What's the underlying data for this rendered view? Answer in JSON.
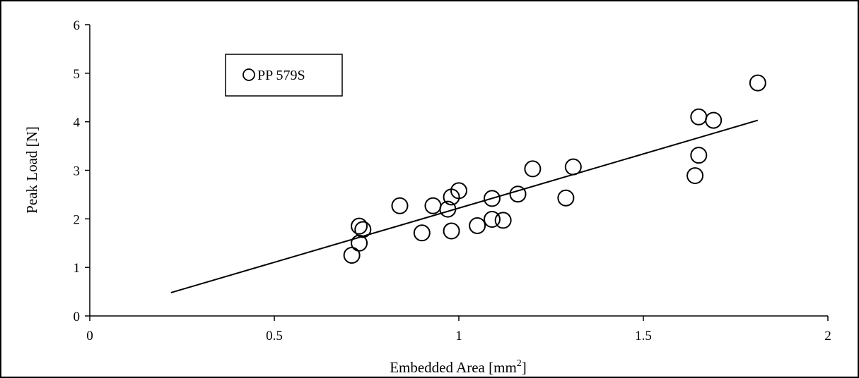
{
  "chart_data": {
    "type": "scatter",
    "title": "",
    "xlabel": "Embedded Area [mm",
    "xlabel_sup": "2",
    "xlabel_suffix": "]",
    "ylabel": "Peak Load [N]",
    "xlim": [
      0,
      2
    ],
    "ylim": [
      0,
      6
    ],
    "x_ticks": [
      0,
      0.5,
      1,
      1.5,
      2
    ],
    "x_tick_labels": [
      "0",
      "0.5",
      "1",
      "1.5",
      "2"
    ],
    "y_ticks": [
      0,
      1,
      2,
      3,
      4,
      5,
      6
    ],
    "y_tick_labels": [
      "0",
      "1",
      "2",
      "3",
      "4",
      "5",
      "6"
    ],
    "grid": false,
    "legend_position": "top-left",
    "series": [
      {
        "name": "PP 579S",
        "marker": "open-circle",
        "points": [
          {
            "x": 0.71,
            "y": 1.25
          },
          {
            "x": 0.73,
            "y": 1.5
          },
          {
            "x": 0.73,
            "y": 1.85
          },
          {
            "x": 0.74,
            "y": 1.78
          },
          {
            "x": 0.84,
            "y": 2.27
          },
          {
            "x": 0.9,
            "y": 1.71
          },
          {
            "x": 0.93,
            "y": 2.27
          },
          {
            "x": 0.97,
            "y": 2.2
          },
          {
            "x": 0.98,
            "y": 2.45
          },
          {
            "x": 0.98,
            "y": 1.75
          },
          {
            "x": 1.0,
            "y": 2.58
          },
          {
            "x": 1.05,
            "y": 1.86
          },
          {
            "x": 1.09,
            "y": 2.42
          },
          {
            "x": 1.09,
            "y": 1.99
          },
          {
            "x": 1.12,
            "y": 1.97
          },
          {
            "x": 1.16,
            "y": 2.51
          },
          {
            "x": 1.2,
            "y": 3.03
          },
          {
            "x": 1.29,
            "y": 2.43
          },
          {
            "x": 1.31,
            "y": 3.07
          },
          {
            "x": 1.64,
            "y": 2.89
          },
          {
            "x": 1.65,
            "y": 4.1
          },
          {
            "x": 1.65,
            "y": 3.31
          },
          {
            "x": 1.69,
            "y": 4.03
          },
          {
            "x": 1.81,
            "y": 4.8
          }
        ]
      }
    ],
    "trendline": {
      "type": "linear",
      "x": [
        0.22,
        1.81
      ],
      "y": [
        0.48,
        4.03
      ]
    },
    "colors": {
      "marker_stroke": "#000000",
      "line": "#000000",
      "axis": "#000000",
      "background": "#ffffff"
    }
  }
}
